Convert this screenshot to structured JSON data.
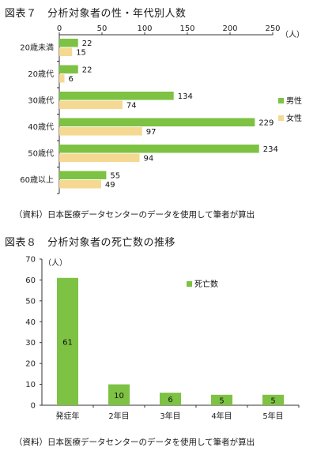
{
  "figure7": {
    "title": "図表７　分析対象者の性・年代別人数",
    "source": "（資料）日本医療データセンターのデータを使用して筆者が算出"
  },
  "figure8": {
    "title": "図表８　分析対象者の死亡数の推移",
    "source": "（資料）日本医療データセンターのデータを使用して筆者が算出"
  },
  "colors": {
    "male": "#7dc242",
    "female": "#f5d992",
    "deaths": "#7dc242",
    "axis": "#333333"
  },
  "chart_data": [
    {
      "type": "bar",
      "orientation": "horizontal",
      "categories": [
        "20歳未満",
        "20歳代",
        "30歳代",
        "40歳代",
        "50歳代",
        "60歳以上"
      ],
      "series": [
        {
          "name": "男性",
          "values": [
            22,
            22,
            134,
            229,
            234,
            55
          ]
        },
        {
          "name": "女性",
          "values": [
            15,
            6,
            74,
            97,
            94,
            49
          ]
        }
      ],
      "xlim": [
        0,
        250
      ],
      "xticks": [
        0,
        50,
        100,
        150,
        200,
        250
      ],
      "unit": "（人）",
      "legend": "right"
    },
    {
      "type": "bar",
      "categories": [
        "発症年",
        "2年目",
        "3年目",
        "4年目",
        "5年目"
      ],
      "series": [
        {
          "name": "死亡数",
          "values": [
            61,
            10,
            6,
            5,
            5
          ]
        }
      ],
      "ylim": [
        0,
        70
      ],
      "yticks": [
        0,
        10,
        20,
        30,
        40,
        50,
        60,
        70
      ],
      "unit": "（人）",
      "legend": "top-right"
    }
  ]
}
